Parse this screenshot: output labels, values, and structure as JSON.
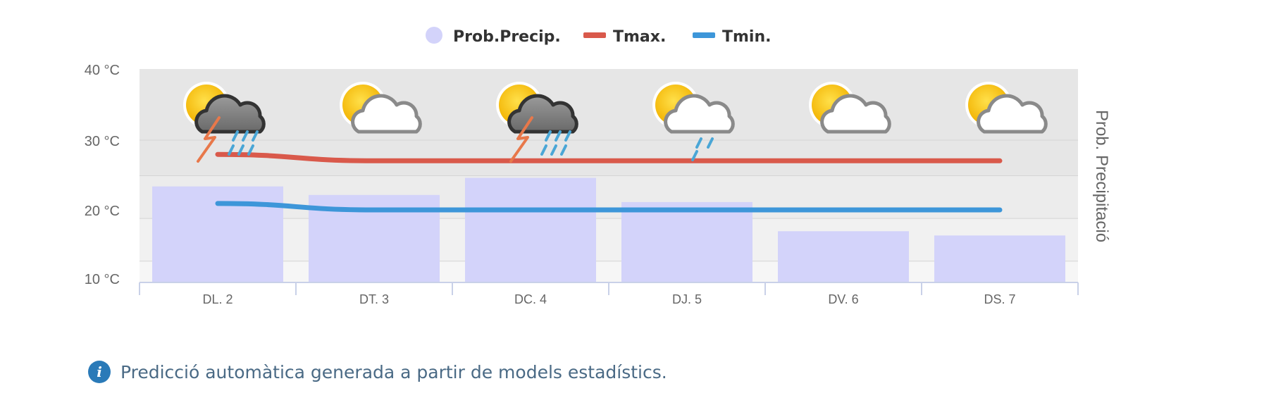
{
  "chart_data": {
    "type": "bar+line",
    "categories": [
      "DL. 2",
      "DT. 3",
      "DC. 4",
      "DJ. 5",
      "DV. 6",
      "DS. 7"
    ],
    "y_ticks": [
      "10 °C",
      "20 °C",
      "30 °C",
      "40 °C"
    ],
    "ylim": [
      10,
      40
    ],
    "right_axis_title": "Prob. Precipitació",
    "series": [
      {
        "name": "Prob.Precip.",
        "type": "bar",
        "color": "#d3d3fa",
        "values": [
          23.5,
          22.3,
          24.7,
          21.3,
          17.2,
          16.6
        ]
      },
      {
        "name": "Tmax.",
        "type": "line",
        "color": "#d9594b",
        "values": [
          28.0,
          27.1,
          27.1,
          27.1,
          27.1,
          27.1
        ]
      },
      {
        "name": "Tmin.",
        "type": "line",
        "color": "#3d96d9",
        "values": [
          21.1,
          20.2,
          20.2,
          20.2,
          20.2,
          20.2
        ]
      }
    ],
    "weather_icons": [
      "sun-storm-rain-icon",
      "sun-cloud-icon",
      "sun-storm-rain-icon",
      "sun-cloud-rain-icon",
      "sun-cloud-icon",
      "sun-cloud-icon"
    ],
    "legend_position": "top-center",
    "grid": true
  },
  "notice": {
    "icon": "info-icon",
    "text": "Predicció automàtica generada a partir de models estadístics."
  }
}
